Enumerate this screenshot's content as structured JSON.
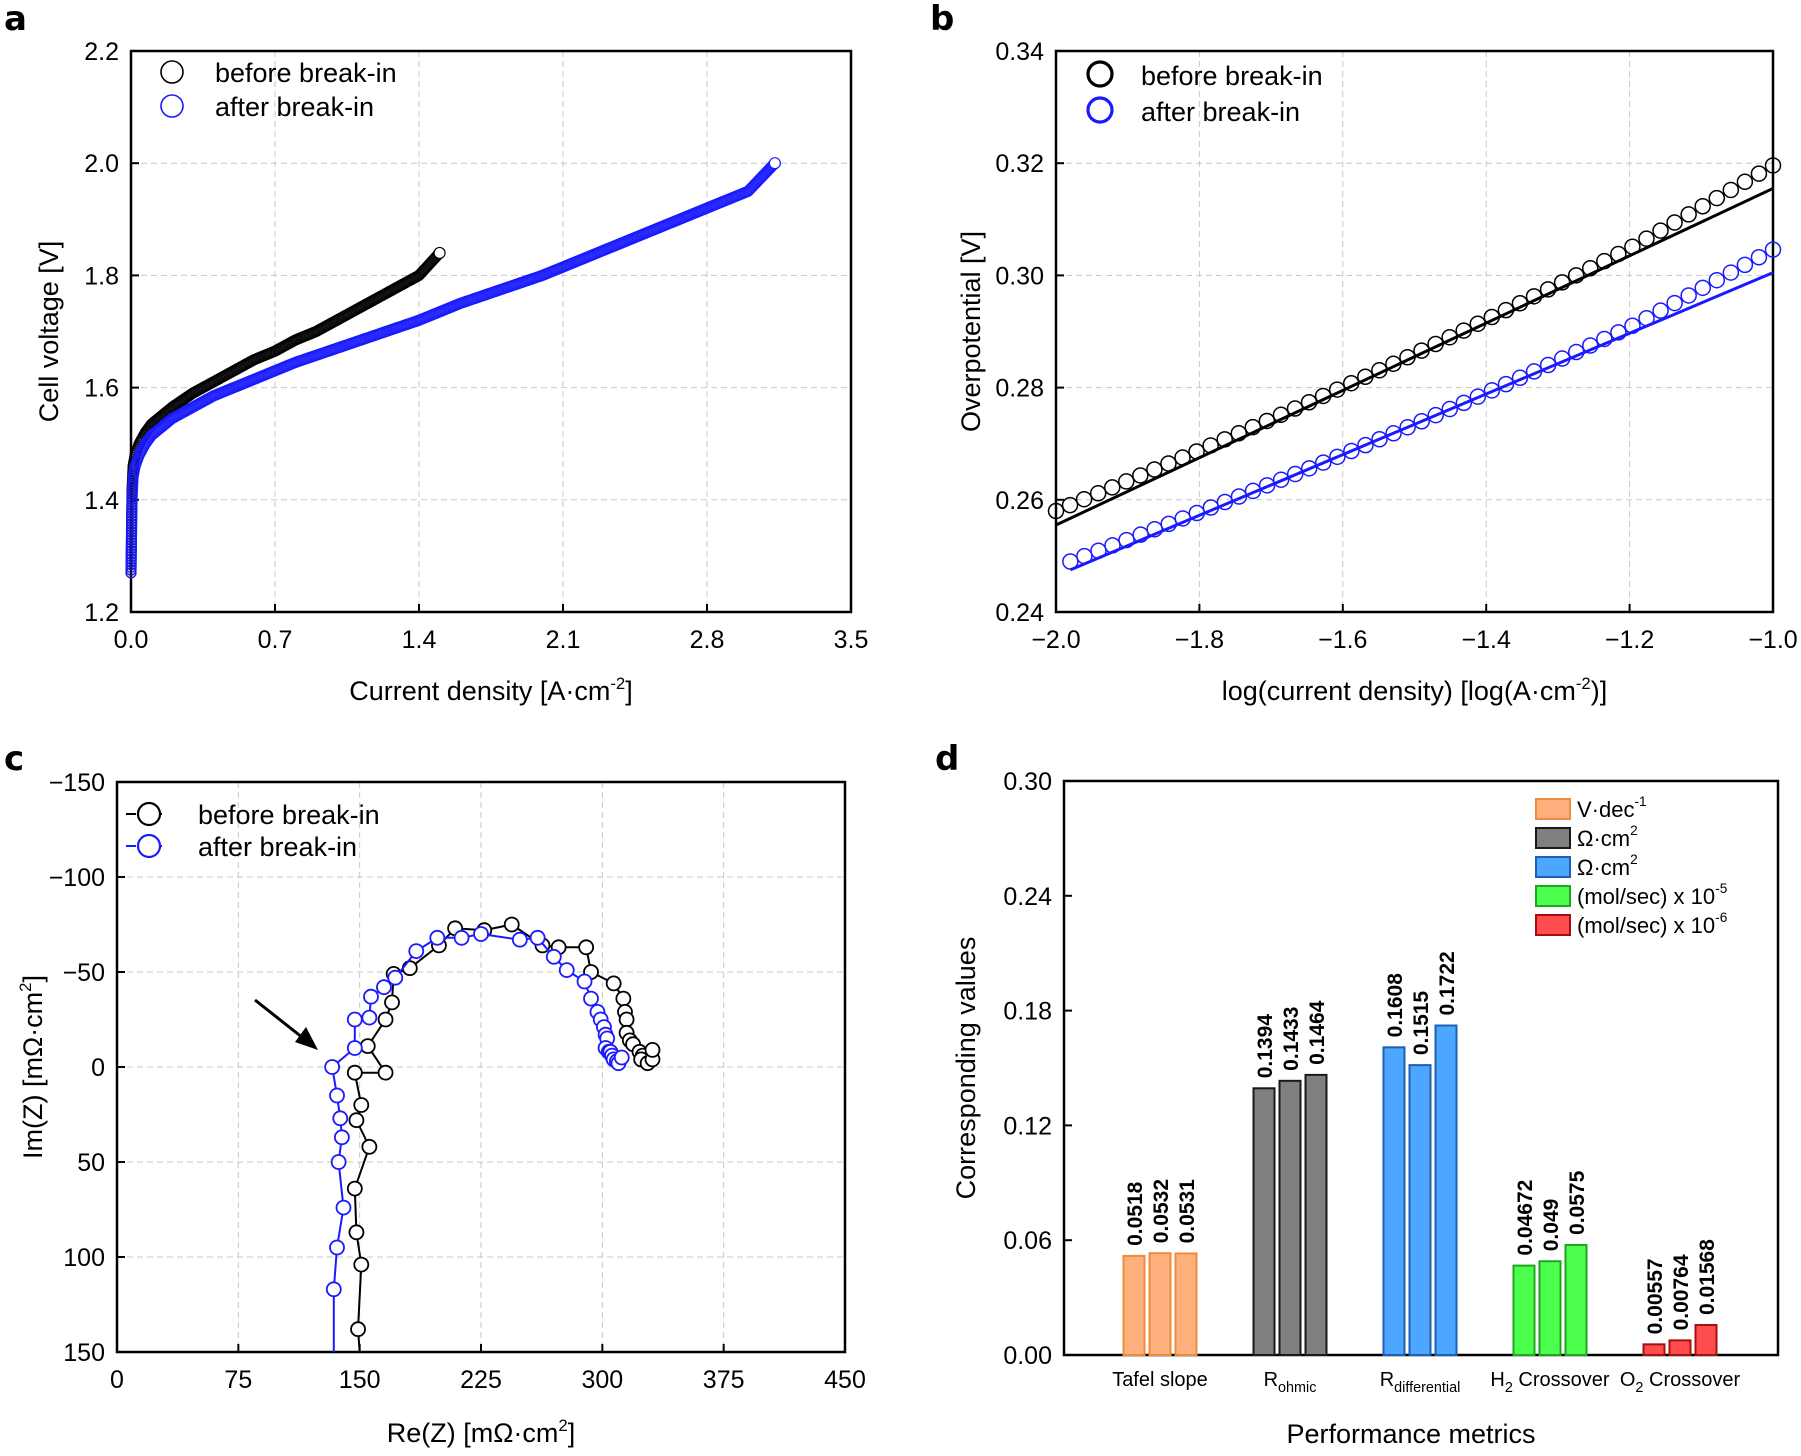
{
  "figure": {
    "panels": [
      "a",
      "b",
      "c",
      "d"
    ]
  },
  "chart_data": [
    {
      "id": "a",
      "type": "scatter",
      "title": "",
      "xlabel": "Current density [A·cm",
      "xlabel_sup": "-2",
      "xlabel_end": "]",
      "ylabel": "Cell voltage [V]",
      "xlim": [
        0.0,
        3.5
      ],
      "ylim": [
        1.2,
        2.2
      ],
      "xticks": [
        "0.0",
        "0.7",
        "1.4",
        "2.1",
        "2.8",
        "3.5"
      ],
      "xtick_values": [
        0.0,
        0.7,
        1.4,
        2.1,
        2.8,
        3.5
      ],
      "yticks": [
        "1.2",
        "1.4",
        "1.6",
        "1.8",
        "2.0",
        "2.2"
      ],
      "ytick_values": [
        1.2,
        1.4,
        1.6,
        1.8,
        2.0,
        2.2
      ],
      "grid": true,
      "legend_position": "top-left",
      "series": [
        {
          "name": "before break-in",
          "color": "#000000",
          "x": [
            0.0,
            0.005,
            0.01,
            0.02,
            0.04,
            0.07,
            0.1,
            0.15,
            0.2,
            0.3,
            0.4,
            0.5,
            0.6,
            0.7,
            0.8,
            0.9,
            1.0,
            1.1,
            1.2,
            1.3,
            1.4,
            1.5
          ],
          "y": [
            1.27,
            1.42,
            1.46,
            1.48,
            1.5,
            1.52,
            1.535,
            1.55,
            1.565,
            1.59,
            1.61,
            1.63,
            1.65,
            1.665,
            1.685,
            1.7,
            1.72,
            1.74,
            1.76,
            1.78,
            1.8,
            1.84
          ]
        },
        {
          "name": "after break-in",
          "color": "#1a1aff",
          "x": [
            0.0,
            0.005,
            0.01,
            0.02,
            0.04,
            0.07,
            0.1,
            0.15,
            0.2,
            0.3,
            0.4,
            0.5,
            0.6,
            0.7,
            0.8,
            1.0,
            1.2,
            1.4,
            1.6,
            1.8,
            2.0,
            2.2,
            2.4,
            2.6,
            2.8,
            3.0,
            3.13
          ],
          "y": [
            1.27,
            1.4,
            1.44,
            1.46,
            1.48,
            1.5,
            1.515,
            1.53,
            1.545,
            1.565,
            1.585,
            1.6,
            1.615,
            1.63,
            1.645,
            1.67,
            1.695,
            1.72,
            1.75,
            1.775,
            1.8,
            1.83,
            1.86,
            1.89,
            1.92,
            1.95,
            2.0
          ]
        }
      ]
    },
    {
      "id": "b",
      "type": "scatter",
      "title": "",
      "xlabel": "log(current density)  [log(A·cm",
      "xlabel_sup": "-2",
      "xlabel_end": ")]",
      "ylabel": "Overpotential [V]",
      "xlim": [
        -2.0,
        -1.0
      ],
      "ylim": [
        0.24,
        0.34
      ],
      "xticks": [
        "−2.0",
        "−1.8",
        "−1.6",
        "−1.4",
        "−1.2",
        "−1.0"
      ],
      "xtick_values": [
        -2.0,
        -1.8,
        -1.6,
        -1.4,
        -1.2,
        -1.0
      ],
      "yticks": [
        "0.24",
        "0.26",
        "0.28",
        "0.30",
        "0.32",
        "0.34"
      ],
      "ytick_values": [
        0.24,
        0.26,
        0.28,
        0.3,
        0.32,
        0.34
      ],
      "grid": true,
      "legend_position": "top-left",
      "series": [
        {
          "name": "before break-in",
          "color": "#000000",
          "x_start": -2.0,
          "x_end": -1.0,
          "n_points": 52,
          "y_start": 0.258,
          "y_end": 0.318,
          "curvature": 0.004,
          "fit": {
            "x": [
              -2.0,
              -1.0
            ],
            "y": [
              0.2555,
              0.3155
            ]
          }
        },
        {
          "name": "after break-in",
          "color": "#1a1aff",
          "x_start": -1.98,
          "x_end": -1.0,
          "n_points": 51,
          "y_start": 0.249,
          "y_end": 0.303,
          "curvature": 0.004,
          "fit": {
            "x": [
              -1.98,
              -1.0
            ],
            "y": [
              0.2475,
              0.3005
            ]
          }
        }
      ]
    },
    {
      "id": "c",
      "type": "line",
      "title": "",
      "xlabel": "Re(Z) [mΩ·cm",
      "xlabel_sup": "2",
      "xlabel_end": "]",
      "ylabel": "Im(Z) [mΩ·cm",
      "ylabel_sup": "2",
      "ylabel_end": "]",
      "xlim": [
        0,
        450
      ],
      "ylim": [
        150,
        -150
      ],
      "xticks": [
        "0",
        "75",
        "150",
        "225",
        "300",
        "375",
        "450"
      ],
      "xtick_values": [
        0,
        75,
        150,
        225,
        300,
        375,
        450
      ],
      "yticks": [
        "−150",
        "−100",
        "−50",
        "0",
        "50",
        "100",
        "150"
      ],
      "ytick_values": [
        -150,
        -100,
        -50,
        0,
        50,
        100,
        150
      ],
      "grid": true,
      "legend_position": "top-left",
      "annotation": "arrow pointing to high-frequency intercept of after break-in curve (~133, 0)",
      "series": [
        {
          "name": "before break-in",
          "color": "#000000",
          "x": [
            150,
            149,
            151,
            148,
            147,
            156,
            148,
            151,
            147,
            166,
            155,
            166,
            170,
            171,
            181,
            199,
            209,
            227,
            244,
            263,
            273,
            290,
            293,
            307,
            313,
            314,
            315,
            315,
            317,
            319,
            323,
            325,
            324,
            328,
            331,
            331
          ],
          "y": [
            150,
            138,
            104,
            87,
            64,
            42,
            28,
            20,
            3,
            3,
            -11,
            -25,
            -34,
            -49,
            -52,
            -64,
            -73,
            -72,
            -75,
            -64,
            -63,
            -63,
            -50,
            -44,
            -36,
            -29,
            -25,
            -18,
            -14,
            -12,
            -8,
            -6,
            -4,
            -2,
            -4,
            -9
          ]
        },
        {
          "name": "after break-in",
          "color": "#1a1aff",
          "x": [
            134,
            134,
            136,
            140,
            137,
            139,
            138,
            136,
            133,
            147,
            147,
            156,
            157,
            165,
            172,
            185,
            198,
            213,
            225,
            249,
            260,
            270,
            278,
            289,
            293,
            297,
            299,
            301,
            302,
            303,
            302,
            304,
            305,
            306,
            307,
            309,
            310,
            312
          ],
          "y": [
            150,
            117,
            95,
            74,
            50,
            37,
            27,
            15,
            0,
            -10,
            -25,
            -26,
            -37,
            -42,
            -47,
            -61,
            -68,
            -68,
            -70,
            -67,
            -68,
            -58,
            -51,
            -45,
            -36,
            -29,
            -25,
            -21,
            -17,
            -15,
            -10,
            -8,
            -8,
            -6,
            -4,
            -3,
            -2,
            -5
          ]
        }
      ]
    },
    {
      "id": "d",
      "type": "bar",
      "title": "",
      "xlabel": "Performance metrics",
      "ylabel": "Corresponding values",
      "ylim": [
        0.0,
        0.3
      ],
      "yticks": [
        "0.00",
        "0.06",
        "0.12",
        "0.18",
        "0.24",
        "0.30"
      ],
      "ytick_values": [
        0.0,
        0.06,
        0.12,
        0.18,
        0.24,
        0.3
      ],
      "grid": false,
      "legend_position": "top-right",
      "categories": [
        {
          "label": "Tafel slope",
          "sub": "",
          "label_end": "",
          "pre": ""
        },
        {
          "label": "R",
          "sub": "ohmic",
          "label_end": "",
          "pre": ""
        },
        {
          "label": "R",
          "sub": "differential",
          "label_end": "",
          "pre": ""
        },
        {
          "label": "H",
          "sub": "2",
          "label_end": " Crossover",
          "pre": ""
        },
        {
          "label": "O",
          "sub": "2",
          "label_end": " Crossover",
          "pre": ""
        }
      ],
      "groups": [
        {
          "category": "Tafel slope",
          "values": [
            0.0518,
            0.0532,
            0.0531
          ],
          "labels": [
            "0.0518",
            "0.0532",
            "0.0531"
          ],
          "fill": "#ffb07c",
          "stroke": "#f08a3c",
          "legend": "V·dec",
          "legend_sup": "-1"
        },
        {
          "category": "R_ohmic",
          "values": [
            0.1394,
            0.1433,
            0.1464
          ],
          "labels": [
            "0.1394",
            "0.1433",
            "0.1464"
          ],
          "fill": "#7f7f7f",
          "stroke": "#1a1a1a",
          "legend": "Ω·cm",
          "legend_sup": "2"
        },
        {
          "category": "R_differential",
          "values": [
            0.1608,
            0.1515,
            0.1722
          ],
          "labels": [
            "0.1608",
            "0.1515",
            "0.1722"
          ],
          "fill": "#4da6ff",
          "stroke": "#1c5fb5",
          "legend": "Ω·cm",
          "legend_sup": "2"
        },
        {
          "category": "H2 Crossover",
          "values": [
            0.04672,
            0.049,
            0.0575
          ],
          "labels": [
            "0.04672",
            "0.049",
            "0.0575"
          ],
          "fill": "#4cff4c",
          "stroke": "#1fa51f",
          "legend": "(mol/sec) x 10",
          "legend_sup": "-5"
        },
        {
          "category": "O2 Crossover",
          "values": [
            0.00557,
            0.00764,
            0.01568
          ],
          "labels": [
            "0.00557",
            "0.00764",
            "0.01568"
          ],
          "fill": "#ff4d4d",
          "stroke": "#a50f0f",
          "legend": "(mol/sec) x 10",
          "legend_sup": "-6"
        }
      ]
    }
  ]
}
